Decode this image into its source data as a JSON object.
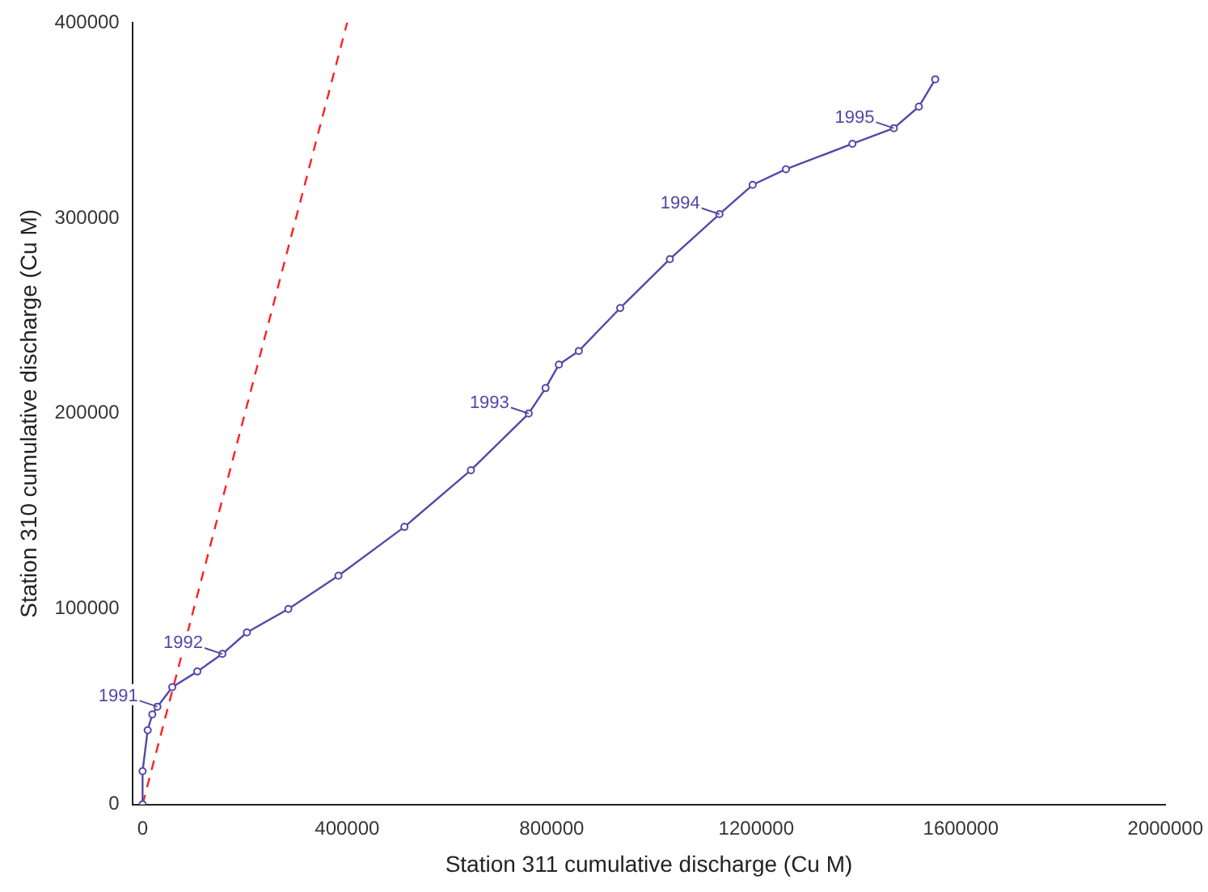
{
  "chart_data": {
    "type": "line",
    "xlabel": "Station 311 cumulative discharge (Cu M)",
    "ylabel": "Station 310 cumulative discharge (Cu M)",
    "xlim": [
      -20000,
      2000000
    ],
    "xticks": [
      0,
      400000,
      800000,
      1200000,
      1600000,
      2000000
    ],
    "ylim": [
      0,
      400000
    ],
    "yticks": [
      0,
      100000,
      200000,
      300000,
      400000
    ],
    "grid": false,
    "legend": false,
    "marker": "circle",
    "series": [
      {
        "color": "#5548a8",
        "line_style": "solid",
        "x": [
          0,
          0,
          10000,
          19000,
          29000,
          58000,
          107000,
          156000,
          204000,
          285000,
          383000,
          512000,
          642000,
          755000,
          788000,
          814000,
          853000,
          934000,
          1031000,
          1128000,
          1193000,
          1258000,
          1388000,
          1469000,
          1518000,
          1550000
        ],
        "values": [
          0,
          17000,
          38000,
          46000,
          50000,
          60000,
          68000,
          77000,
          88000,
          100000,
          117000,
          142000,
          171000,
          200000,
          213000,
          225000,
          232000,
          254000,
          279000,
          302000,
          317000,
          325000,
          338000,
          346000,
          357000,
          371000
        ]
      },
      {
        "color": "#ff2020",
        "line_style": "dashed",
        "marker": "none",
        "x": [
          0,
          400000
        ],
        "values": [
          0,
          400000
        ]
      }
    ],
    "annotations": [
      {
        "text": "1991",
        "x": 29000,
        "y": 50000
      },
      {
        "text": "1992",
        "x": 156000,
        "y": 77000
      },
      {
        "text": "1993",
        "x": 755000,
        "y": 200000
      },
      {
        "text": "1994",
        "x": 1128000,
        "y": 302000
      },
      {
        "text": "1995",
        "x": 1469000,
        "y": 346000
      }
    ]
  }
}
